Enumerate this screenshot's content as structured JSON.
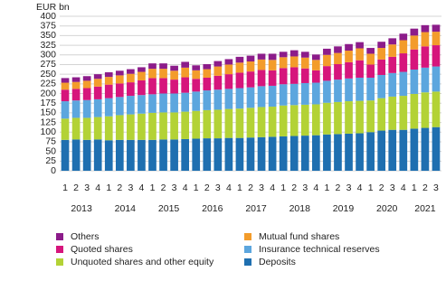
{
  "chart_data": {
    "type": "stacked_bar",
    "y_label": "EUR bn",
    "categories": [
      "1",
      "2",
      "3",
      "4",
      "1",
      "2",
      "3",
      "4",
      "1",
      "2",
      "3",
      "4",
      "1",
      "2",
      "3",
      "4",
      "1",
      "2",
      "3",
      "4",
      "1",
      "2",
      "3",
      "4",
      "1",
      "2",
      "3",
      "4",
      "1",
      "2",
      "3",
      "4",
      "1",
      "2",
      "3"
    ],
    "years": [
      "2013",
      "2014",
      "2015",
      "2016",
      "2017",
      "2018",
      "2019",
      "2020",
      "2021"
    ],
    "ylim": [
      0,
      400
    ],
    "yticks": [
      0,
      25,
      50,
      75,
      100,
      125,
      150,
      175,
      200,
      225,
      250,
      275,
      300,
      325,
      350,
      375,
      400
    ],
    "grid": true,
    "series": [
      {
        "name": "Deposits",
        "color": "#1f6fb0",
        "values": [
          80,
          81,
          80,
          81,
          79,
          80,
          80,
          80,
          80,
          81,
          81,
          82,
          83,
          84,
          84,
          85,
          85,
          86,
          87,
          88,
          89,
          90,
          91,
          92,
          94,
          95,
          96,
          97,
          100,
          104,
          106,
          106,
          109,
          111,
          113
        ]
      },
      {
        "name": "Unquoted shares and other equity",
        "color": "#b3d236",
        "values": [
          55,
          56,
          57,
          58,
          62,
          64,
          66,
          68,
          70,
          70,
          70,
          71,
          72,
          73,
          74,
          75,
          76,
          77,
          78,
          78,
          80,
          80,
          80,
          80,
          82,
          83,
          84,
          84,
          82,
          84,
          86,
          88,
          90,
          92,
          92
        ]
      },
      {
        "name": "Insurance technical reserves",
        "color": "#5ca6de",
        "values": [
          45,
          45,
          46,
          46,
          47,
          47,
          48,
          48,
          48,
          49,
          49,
          49,
          50,
          51,
          52,
          52,
          53,
          53,
          54,
          54,
          55,
          55,
          56,
          56,
          57,
          58,
          59,
          60,
          59,
          60,
          61,
          62,
          63,
          64,
          65
        ]
      },
      {
        "name": "Quoted shares",
        "color": "#d6157c",
        "values": [
          30,
          30,
          31,
          33,
          35,
          35,
          35,
          38,
          42,
          40,
          36,
          40,
          33,
          33,
          36,
          38,
          40,
          41,
          42,
          40,
          42,
          43,
          38,
          32,
          38,
          40,
          42,
          45,
          34,
          40,
          42,
          48,
          52,
          55,
          55
        ]
      },
      {
        "name": "Mutual fund shares",
        "color": "#f39c2b",
        "values": [
          18,
          18,
          19,
          20,
          20,
          21,
          22,
          22,
          24,
          24,
          23,
          25,
          22,
          22,
          24,
          25,
          26,
          26,
          27,
          27,
          28,
          28,
          28,
          27,
          29,
          29,
          30,
          31,
          28,
          30,
          32,
          34,
          36,
          37,
          35
        ]
      },
      {
        "name": "Others",
        "color": "#8c1c8a",
        "values": [
          12,
          12,
          12,
          12,
          12,
          12,
          12,
          12,
          14,
          14,
          13,
          15,
          13,
          13,
          14,
          14,
          15,
          15,
          15,
          16,
          14,
          16,
          15,
          14,
          16,
          17,
          17,
          16,
          15,
          16,
          16,
          17,
          18,
          18,
          18
        ]
      }
    ]
  }
}
